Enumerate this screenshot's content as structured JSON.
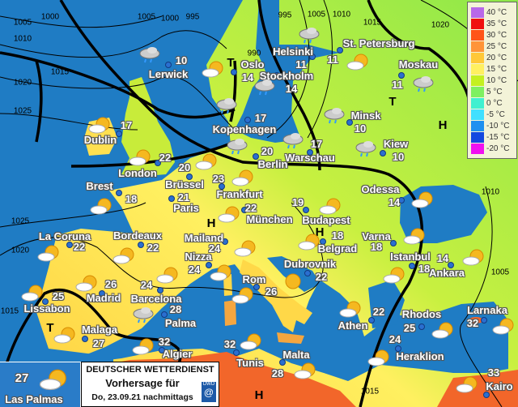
{
  "legend": [
    {
      "label": "40 °C",
      "color": "#b868e8"
    },
    {
      "label": "35 °C",
      "color": "#f01010"
    },
    {
      "label": "30 °C",
      "color": "#ff5418"
    },
    {
      "label": "25 °C",
      "color": "#ff9438"
    },
    {
      "label": "20 °C",
      "color": "#ffc838"
    },
    {
      "label": "15 °C",
      "color": "#fff060"
    },
    {
      "label": "10 °C",
      "color": "#c4f020"
    },
    {
      "label": "5 °C",
      "color": "#7ef060"
    },
    {
      "label": "0 °C",
      "color": "#40f0d0"
    },
    {
      "label": "-5 °C",
      "color": "#40e0ff"
    },
    {
      "label": "-10 °C",
      "color": "#1f90f0"
    },
    {
      "label": "-15 °C",
      "color": "#1448e0"
    },
    {
      "label": "-20 °C",
      "color": "#f010f0"
    }
  ],
  "cities": [
    {
      "name": "Lerwick",
      "temp": "10"
    },
    {
      "name": "Oslo",
      "temp": "14"
    },
    {
      "name": "Helsinki",
      "temp": "11"
    },
    {
      "name": "Stockholm",
      "temp": "14"
    },
    {
      "name": "St. Petersburg",
      "temp": "11"
    },
    {
      "name": "Moskau",
      "temp": "11"
    },
    {
      "name": "Dublin",
      "temp": "17"
    },
    {
      "name": "Kopenhagen",
      "temp": "17"
    },
    {
      "name": "Minsk",
      "temp": "10"
    },
    {
      "name": "Kiew",
      "temp": "10"
    },
    {
      "name": "London",
      "temp": "22"
    },
    {
      "name": "Berlin",
      "temp": "20"
    },
    {
      "name": "Warschau",
      "temp": "17"
    },
    {
      "name": "Brest",
      "temp": "18"
    },
    {
      "name": "Brüssel",
      "temp": "20"
    },
    {
      "name": "Frankfurt",
      "temp": "23"
    },
    {
      "name": "Paris",
      "temp": "21"
    },
    {
      "name": "München",
      "temp": "22"
    },
    {
      "name": "Budapest",
      "temp": "19"
    },
    {
      "name": "Odessa",
      "temp": "14"
    },
    {
      "name": "La Coruna",
      "temp": "22"
    },
    {
      "name": "Bordeaux",
      "temp": "22"
    },
    {
      "name": "Mailand",
      "temp": "24"
    },
    {
      "name": "Belgrad",
      "temp": "18"
    },
    {
      "name": "Varna",
      "temp": "18"
    },
    {
      "name": "Istanbul",
      "temp": "18"
    },
    {
      "name": "Ankara",
      "temp": "14"
    },
    {
      "name": "Nizza",
      "temp": "24"
    },
    {
      "name": "Dubrovnik",
      "temp": "22"
    },
    {
      "name": "Rom",
      "temp": "26"
    },
    {
      "name": "Madrid",
      "temp": "26"
    },
    {
      "name": "Barcelona",
      "temp": "24"
    },
    {
      "name": "Lissabon",
      "temp": "25"
    },
    {
      "name": "Palma",
      "temp": "28"
    },
    {
      "name": "Athen",
      "temp": "22"
    },
    {
      "name": "Rhodos",
      "temp": "25"
    },
    {
      "name": "Larnaka",
      "temp": "32"
    },
    {
      "name": "Malaga",
      "temp": "27"
    },
    {
      "name": "Algier",
      "temp": "32"
    },
    {
      "name": "Tunis",
      "temp": "32"
    },
    {
      "name": "Malta",
      "temp": "28"
    },
    {
      "name": "Heraklion",
      "temp": "24"
    },
    {
      "name": "Kairo",
      "temp": "33"
    }
  ],
  "isobar_labels": [
    "1000",
    "1005",
    "1010",
    "1015",
    "1020",
    "1025",
    "1025",
    "1020",
    "1015",
    "1005",
    "1000",
    "995",
    "990",
    "995",
    "1005",
    "1010",
    "1015",
    "1020",
    "1010",
    "1005",
    "1015"
  ],
  "pressure_systems": [
    "H",
    "T",
    "H",
    "H",
    "T",
    "H",
    "T"
  ],
  "inset": {
    "temp": "27",
    "name": "Las Palmas",
    "icon": "sun-cloud-icon"
  },
  "title_box": {
    "org": "DEUTSCHER WETTERDIENST",
    "subtitle": "Vorhersage für",
    "date": "Do, 23.09.21 nachmittags",
    "logo": "DWD"
  },
  "colors": {
    "sea": "#1f7cc4",
    "land_north": "#9aea48",
    "land_south": "#fff060",
    "africa": "#f2662a"
  }
}
